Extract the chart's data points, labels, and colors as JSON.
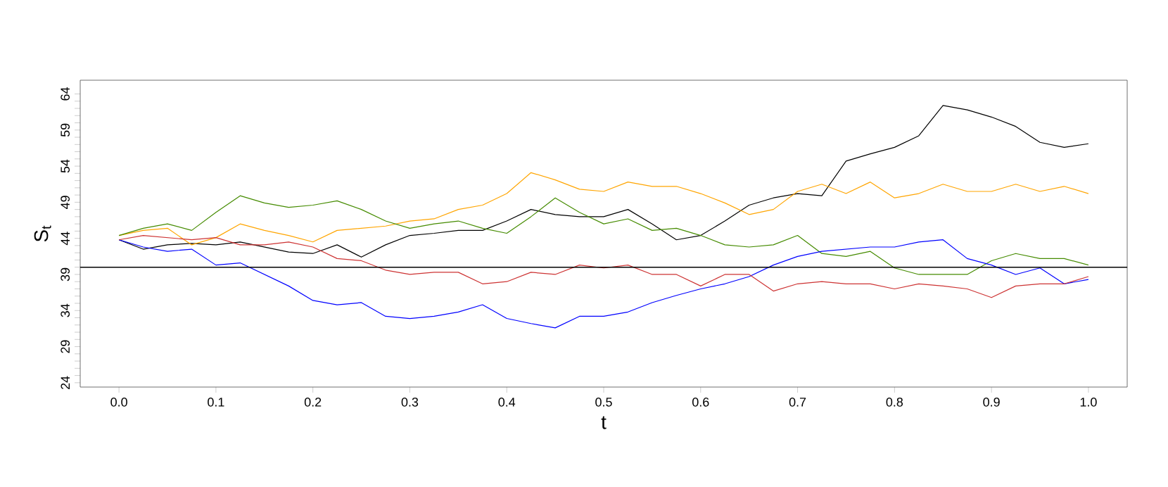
{
  "chart_data": {
    "type": "line",
    "xlabel": "t",
    "ylabel": "S$_{t}$",
    "x": [
      0,
      0.025,
      0.05,
      0.075,
      0.1,
      0.125,
      0.15,
      0.175,
      0.2,
      0.225,
      0.25,
      0.275,
      0.3,
      0.325,
      0.35,
      0.375,
      0.4,
      0.425,
      0.45,
      0.475,
      0.5,
      0.525,
      0.55,
      0.575,
      0.6,
      0.625,
      0.65,
      0.675,
      0.7,
      0.725,
      0.75,
      0.775,
      0.8,
      0.825,
      0.85,
      0.875,
      0.9,
      0.925,
      0.95,
      0.975,
      1.0
    ],
    "series": [
      {
        "color": "#000000",
        "values": [
          43.8,
          42.5,
          43.1,
          43.3,
          43.1,
          43.5,
          42.8,
          42.1,
          41.9,
          43.1,
          41.4,
          43.1,
          44.4,
          44.7,
          45.1,
          45.1,
          46.4,
          48.0,
          47.3,
          47.0,
          47.0,
          48.0,
          46.0,
          43.8,
          44.4,
          46.4,
          48.6,
          49.6,
          50.2,
          49.9,
          54.7,
          55.7,
          56.6,
          58.2,
          62.4,
          61.8,
          60.8,
          59.5,
          57.3,
          56.6,
          57.1
        ]
      },
      {
        "color": "#ffa500",
        "values": [
          44.4,
          45.1,
          45.4,
          43.1,
          44.1,
          46.0,
          45.1,
          44.4,
          43.5,
          45.1,
          45.4,
          45.7,
          46.4,
          46.7,
          48.0,
          48.6,
          50.2,
          53.1,
          52.1,
          50.8,
          50.5,
          51.8,
          51.2,
          51.2,
          50.2,
          48.9,
          47.3,
          48.0,
          50.5,
          51.5,
          50.2,
          51.8,
          49.6,
          50.2,
          51.5,
          50.5,
          50.5,
          51.5,
          50.5,
          51.2,
          50.2
        ]
      },
      {
        "color": "#458b00",
        "values": [
          44.4,
          45.4,
          46.0,
          45.1,
          47.6,
          49.9,
          48.9,
          48.3,
          48.6,
          49.2,
          48.0,
          46.4,
          45.4,
          46.0,
          46.4,
          45.4,
          44.7,
          47.0,
          49.6,
          47.6,
          46.0,
          46.7,
          45.1,
          45.4,
          44.4,
          43.1,
          42.8,
          43.1,
          44.4,
          41.9,
          41.5,
          42.2,
          39.9,
          39.0,
          39.0,
          39.0,
          40.9,
          41.9,
          41.2,
          41.2,
          40.3
        ]
      },
      {
        "color": "#0000ff",
        "values": [
          43.8,
          42.8,
          42.2,
          42.5,
          40.3,
          40.6,
          39.0,
          37.4,
          35.4,
          34.8,
          35.1,
          33.2,
          32.9,
          33.2,
          33.8,
          34.8,
          32.9,
          32.2,
          31.6,
          33.2,
          33.2,
          33.8,
          35.1,
          36.1,
          37.0,
          37.7,
          38.7,
          40.3,
          41.5,
          42.2,
          42.5,
          42.8,
          42.8,
          43.5,
          43.8,
          41.2,
          40.3,
          39.0,
          39.9,
          37.7,
          38.3
        ]
      },
      {
        "color": "#cd3333",
        "values": [
          43.8,
          44.4,
          44.1,
          43.8,
          44.1,
          43.1,
          43.1,
          43.5,
          42.8,
          41.2,
          40.9,
          39.6,
          39.0,
          39.3,
          39.3,
          37.7,
          38.0,
          39.3,
          39.0,
          40.3,
          39.9,
          40.3,
          39.0,
          39.0,
          37.4,
          39.0,
          39.0,
          36.7,
          37.7,
          38.0,
          37.7,
          37.7,
          37.0,
          37.7,
          37.4,
          37.0,
          35.8,
          37.4,
          37.7,
          37.7,
          38.7
        ]
      }
    ],
    "xlim": [
      -0.04,
      1.04
    ],
    "ylim": [
      23.4,
      65.9
    ],
    "xticks": [
      {
        "value": 0,
        "label": "0.0"
      },
      0.1,
      0.2,
      0.3,
      0.4,
      0.5,
      0.6,
      0.7,
      0.8,
      0.9,
      {
        "value": 1,
        "label": "1.0"
      }
    ],
    "yticks": [
      24,
      {
        "value": 25,
        "label": null
      },
      {
        "value": 26,
        "label": null
      },
      {
        "value": 27,
        "label": null
      },
      {
        "value": 28,
        "label": null
      },
      29,
      {
        "value": 30,
        "label": null
      },
      {
        "value": 31,
        "label": null
      },
      {
        "value": 32,
        "label": null
      },
      {
        "value": 33,
        "label": null
      },
      34,
      {
        "value": 35,
        "label": null
      },
      {
        "value": 36,
        "label": null
      },
      {
        "value": 37,
        "label": null
      },
      {
        "value": 38,
        "label": null
      },
      39,
      {
        "value": 40,
        "label": null
      },
      {
        "value": 41,
        "label": null
      },
      {
        "value": 42,
        "label": null
      },
      {
        "value": 43,
        "label": null
      },
      44,
      {
        "value": 45,
        "label": null
      },
      {
        "value": 46,
        "label": null
      },
      {
        "value": 47,
        "label": null
      },
      {
        "value": 48,
        "label": null
      },
      49,
      {
        "value": 50,
        "label": null
      },
      {
        "value": 51,
        "label": null
      },
      {
        "value": 52,
        "label": null
      },
      {
        "value": 53,
        "label": null
      },
      54,
      {
        "value": 55,
        "label": null
      },
      {
        "value": 56,
        "label": null
      },
      {
        "value": 57,
        "label": null
      },
      {
        "value": 58,
        "label": null
      },
      59,
      {
        "value": 60,
        "label": null
      },
      {
        "value": 61,
        "label": null
      },
      {
        "value": 62,
        "label": null
      },
      {
        "value": 63,
        "label": null
      },
      64
    ],
    "ref_lines": [
      {
        "axis": "y",
        "value": 40,
        "color": "#000000"
      }
    ]
  }
}
